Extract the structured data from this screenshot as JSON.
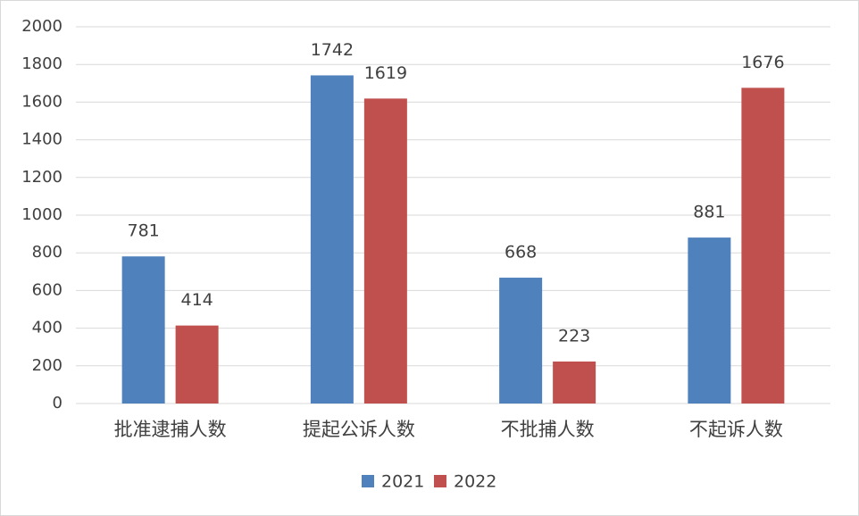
{
  "chart_data": {
    "type": "bar",
    "categories": [
      "批准逮捕人数",
      "提起公诉人数",
      "不批捕人数",
      "不起诉人数"
    ],
    "series": [
      {
        "name": "2021",
        "color": "#4f81bd",
        "values": [
          781,
          1742,
          668,
          881
        ]
      },
      {
        "name": "2022",
        "color": "#c0504d",
        "values": [
          414,
          1619,
          223,
          1676
        ]
      }
    ],
    "ylim": [
      0,
      2000
    ],
    "yticks": [
      0,
      200,
      400,
      600,
      800,
      1000,
      1200,
      1400,
      1600,
      1800,
      2000
    ],
    "grid": true,
    "legend": "bottom"
  }
}
